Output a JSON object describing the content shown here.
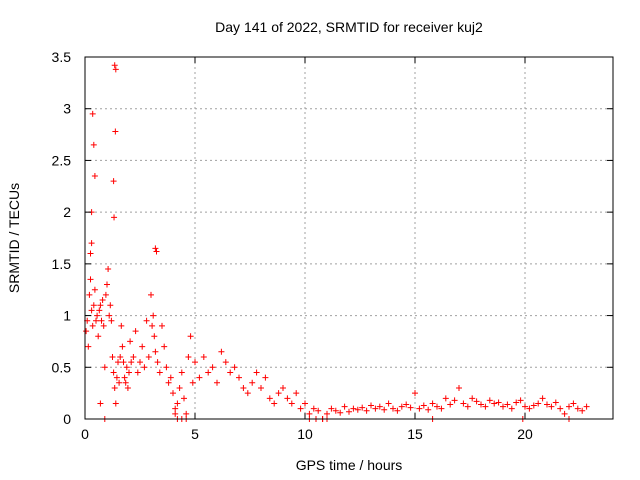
{
  "chart_data": {
    "type": "scatter",
    "title": "Day 141 of 2022, SRMTID for receiver kuj2",
    "xlabel": "GPS time / hours",
    "ylabel": "SRMTID / TECUs",
    "xlim": [
      0,
      24
    ],
    "ylim": [
      0,
      3.5
    ],
    "xticks": [
      0,
      5,
      10,
      15,
      20
    ],
    "xtick_labels": [
      "0",
      "5",
      "10",
      "15",
      "20"
    ],
    "yticks": [
      0,
      0.5,
      1,
      1.5,
      2,
      2.5,
      3,
      3.5
    ],
    "ytick_labels": [
      "0",
      "0.5",
      "1",
      "1.5",
      "2",
      "2.5",
      "3",
      "3.5"
    ],
    "grid": true,
    "marker": "+",
    "color": "#ff0000",
    "series": [
      {
        "name": "SRMTID",
        "x": [
          0.05,
          0.1,
          0.15,
          0.2,
          0.25,
          0.3,
          0.35,
          0.4,
          0.45,
          0.5,
          0.55,
          0.6,
          0.65,
          0.7,
          0.75,
          0.8,
          0.85,
          0.9,
          0.95,
          1.0,
          1.05,
          1.1,
          1.15,
          1.2,
          1.25,
          1.3,
          1.35,
          1.4,
          1.45,
          1.5,
          1.55,
          1.6,
          1.65,
          1.7,
          1.75,
          1.8,
          1.85,
          1.9,
          1.95,
          2.0,
          2.05,
          2.1,
          2.2,
          2.3,
          2.4,
          2.5,
          2.6,
          2.7,
          2.8,
          2.9,
          3.0,
          3.05,
          3.1,
          3.15,
          3.2,
          3.3,
          3.4,
          3.5,
          3.6,
          3.7,
          3.8,
          3.9,
          4.0,
          4.1,
          4.2,
          4.3,
          4.4,
          4.5,
          4.6,
          4.7,
          4.8,
          4.9,
          5.0,
          5.2,
          5.4,
          5.6,
          5.8,
          6.0,
          6.2,
          6.4,
          6.6,
          6.8,
          7.0,
          7.2,
          7.4,
          7.6,
          7.8,
          8.0,
          8.2,
          8.4,
          8.6,
          8.8,
          9.0,
          9.2,
          9.4,
          9.6,
          9.8,
          10.0,
          10.2,
          10.4,
          10.6,
          10.8,
          11.0,
          11.2,
          11.4,
          11.6,
          11.8,
          12.0,
          12.2,
          12.4,
          12.6,
          12.8,
          13.0,
          13.2,
          13.4,
          13.6,
          13.8,
          14.0,
          14.2,
          14.4,
          14.6,
          14.8,
          15.0,
          15.2,
          15.4,
          15.6,
          15.8,
          16.0,
          16.2,
          16.4,
          16.6,
          16.8,
          17.0,
          17.2,
          17.4,
          17.6,
          17.8,
          18.0,
          18.2,
          18.4,
          18.6,
          18.8,
          19.0,
          19.2,
          19.4,
          19.6,
          19.8,
          20.0,
          20.2,
          20.4,
          20.6,
          20.8,
          21.0,
          21.2,
          21.4,
          21.6,
          21.8,
          22.0,
          22.2,
          22.4,
          22.6,
          22.8,
          0.35,
          0.4,
          0.45,
          0.3,
          0.3,
          0.25,
          1.35,
          1.4,
          1.38,
          1.3,
          1.32,
          3.2,
          3.25,
          0.7,
          0.9,
          4.1,
          4.2,
          4.4,
          4.6,
          10.2,
          10.5,
          10.8,
          11.0,
          22.0,
          15.8,
          19.9
        ],
        "y": [
          0.85,
          0.95,
          0.7,
          1.2,
          1.35,
          1.05,
          0.9,
          1.1,
          1.25,
          0.95,
          1.0,
          0.8,
          1.05,
          1.1,
          0.95,
          1.15,
          0.9,
          0.5,
          1.2,
          1.3,
          1.45,
          1.0,
          1.1,
          0.95,
          0.6,
          0.45,
          0.3,
          0.15,
          0.4,
          0.55,
          0.35,
          0.6,
          0.9,
          0.7,
          0.55,
          0.4,
          0.35,
          0.5,
          0.3,
          0.45,
          0.75,
          0.55,
          0.6,
          0.85,
          0.45,
          0.55,
          0.7,
          0.5,
          0.95,
          0.6,
          1.2,
          0.9,
          1.0,
          0.8,
          0.65,
          0.55,
          0.45,
          0.9,
          0.7,
          0.5,
          0.35,
          0.4,
          0.25,
          0.1,
          0.15,
          0.3,
          0.45,
          0.2,
          0.05,
          0.6,
          0.8,
          0.35,
          0.55,
          0.4,
          0.6,
          0.45,
          0.5,
          0.35,
          0.65,
          0.55,
          0.45,
          0.5,
          0.4,
          0.3,
          0.25,
          0.35,
          0.45,
          0.3,
          0.4,
          0.2,
          0.15,
          0.25,
          0.3,
          0.2,
          0.15,
          0.25,
          0.1,
          0.15,
          0.05,
          0.1,
          0.08,
          0.0,
          0.05,
          0.1,
          0.08,
          0.06,
          0.12,
          0.07,
          0.1,
          0.09,
          0.11,
          0.08,
          0.13,
          0.1,
          0.12,
          0.09,
          0.15,
          0.1,
          0.08,
          0.12,
          0.14,
          0.11,
          0.25,
          0.1,
          0.13,
          0.09,
          0.15,
          0.12,
          0.1,
          0.2,
          0.14,
          0.18,
          0.3,
          0.15,
          0.12,
          0.2,
          0.17,
          0.14,
          0.12,
          0.18,
          0.15,
          0.16,
          0.12,
          0.14,
          0.1,
          0.16,
          0.18,
          0.12,
          0.1,
          0.13,
          0.15,
          0.2,
          0.14,
          0.12,
          0.16,
          0.1,
          0.05,
          0.12,
          0.15,
          0.1,
          0.08,
          0.12,
          2.95,
          2.65,
          2.35,
          2.0,
          1.7,
          1.6,
          3.42,
          3.38,
          2.78,
          2.3,
          1.95,
          1.65,
          1.62,
          0.15,
          0.0,
          0.05,
          0.0,
          0.0,
          0.0,
          0.0,
          0.0,
          0.0,
          0.0,
          0.0,
          0.0,
          0.0
        ]
      }
    ]
  }
}
